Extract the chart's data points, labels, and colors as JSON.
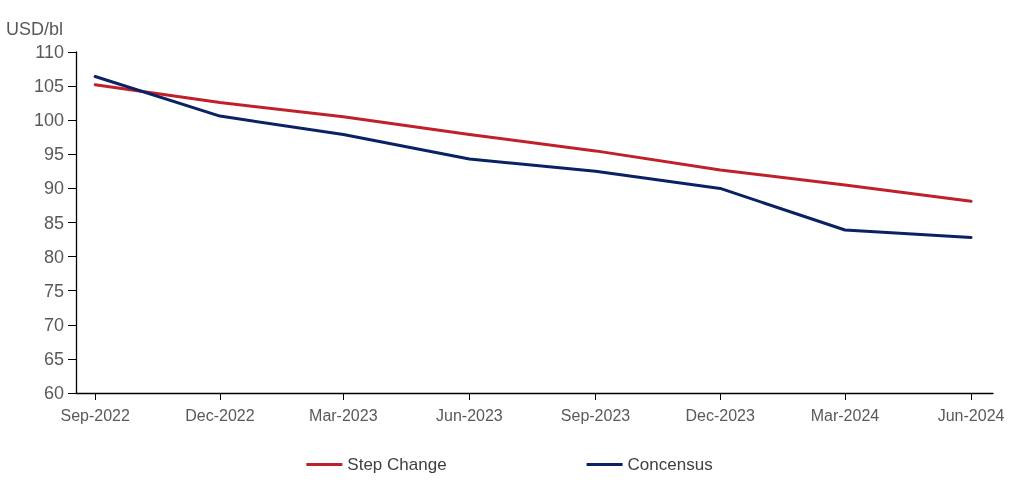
{
  "chart_data": {
    "type": "line",
    "ylabel": "USD/bl",
    "x": [
      "2022-09-15",
      "2022-12-15",
      "2023-03-15",
      "2023-06-15",
      "2023-09-15",
      "2023-12-15",
      "2024-03-15",
      "2024-06-15"
    ],
    "series": [
      {
        "name": "Step Change",
        "color": "#c0202a",
        "values": [
          105.2,
          102.6,
          100.5,
          97.9,
          95.5,
          92.7,
          90.5,
          88.1
        ]
      },
      {
        "name": "Concensus",
        "color": "#0a2263",
        "values": [
          106.4,
          100.6,
          97.9,
          94.3,
          92.5,
          90.0,
          83.9,
          82.8
        ]
      }
    ],
    "xlim": [
      "2022-09-01",
      "2024-07-01"
    ],
    "xticks": [
      {
        "value": "2022-09-15",
        "label": "Sep-2022"
      },
      {
        "value": "2022-12-15",
        "label": "Dec-2022"
      },
      {
        "value": "2023-03-15",
        "label": "Mar-2023"
      },
      {
        "value": "2023-06-15",
        "label": "Jun-2023"
      },
      {
        "value": "2023-09-15",
        "label": "Sep-2023"
      },
      {
        "value": "2023-12-15",
        "label": "Dec-2023"
      },
      {
        "value": "2024-03-15",
        "label": "Mar-2024"
      },
      {
        "value": "2024-06-15",
        "label": "Jun-2024"
      }
    ],
    "ylim": [
      60,
      110
    ],
    "yticks": [
      60,
      65,
      70,
      75,
      80,
      85,
      90,
      95,
      100,
      105,
      110
    ],
    "grid": false,
    "legend": "bottom",
    "marker": "none",
    "line_style": "solid"
  }
}
